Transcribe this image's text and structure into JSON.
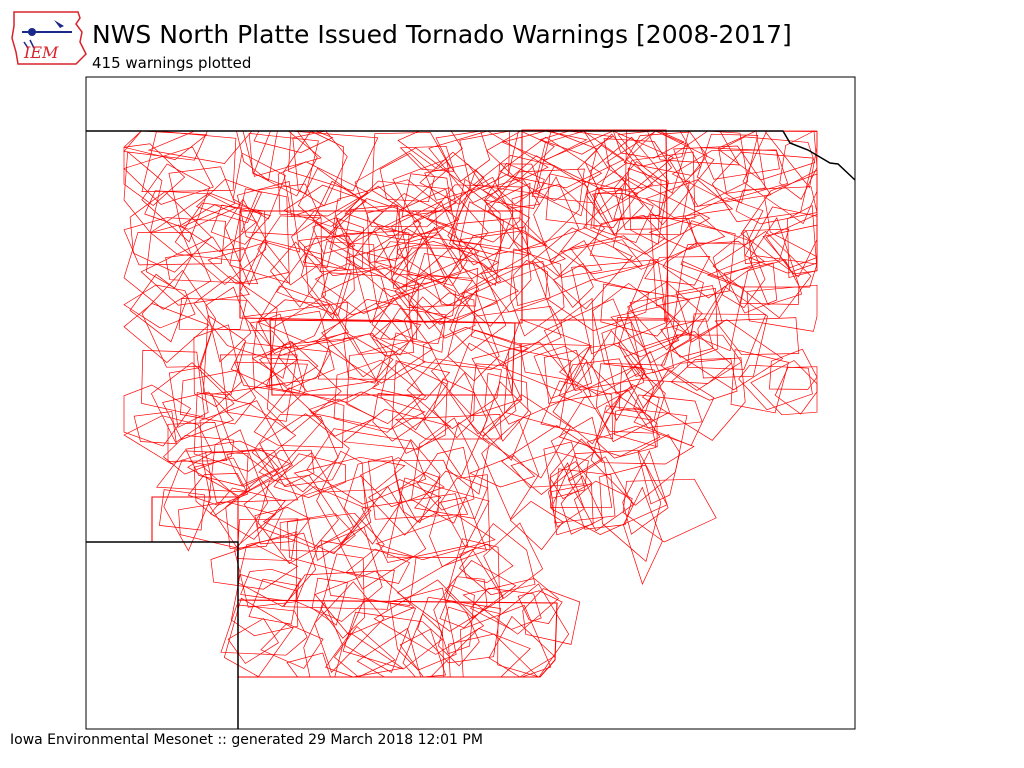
{
  "header": {
    "title": "NWS North Platte Issued Tornado Warnings [2008-2017]",
    "subtitle": "415 warnings plotted"
  },
  "logo": {
    "text": "IEM",
    "color": "#d8232a"
  },
  "footer": {
    "text": "Iowa Environmental Mesonet :: generated 29 March 2018 12:01 PM"
  },
  "map": {
    "warning_count": 415,
    "warning_color": "#ff0000",
    "boundary_color": "#000000"
  }
}
